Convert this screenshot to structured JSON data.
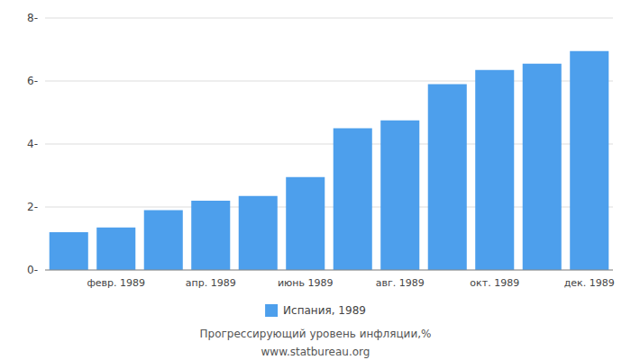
{
  "chart_data": {
    "type": "bar",
    "subtitle": "Прогрессирующий уровень инфляции,%",
    "annotations": [
      "www.statbureau.org"
    ],
    "categories": [
      null,
      "февр. 1989",
      null,
      "апр. 1989",
      null,
      "июнь 1989",
      null,
      "авг. 1989",
      null,
      "окт. 1989",
      null,
      "дек. 1989"
    ],
    "series": [
      {
        "name": "Испания, 1989",
        "color": "#4d9fec",
        "values": [
          1.2,
          1.35,
          1.9,
          2.2,
          2.35,
          2.95,
          4.5,
          4.75,
          5.9,
          6.35,
          6.55,
          6.95
        ]
      }
    ],
    "ylim": [
      0,
      8
    ],
    "yticks": [
      {
        "value": 0,
        "label": "0-"
      },
      {
        "value": 2,
        "label": "2-"
      },
      {
        "value": 4,
        "label": "4-"
      },
      {
        "value": 6,
        "label": "6-"
      },
      {
        "value": 8,
        "label": "8-"
      }
    ],
    "grid": true,
    "legend": "bottom"
  }
}
